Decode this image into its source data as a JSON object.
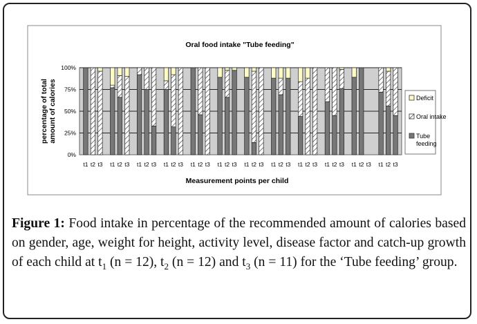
{
  "chart_data": {
    "type": "bar",
    "stacked": true,
    "title": "Oral food intake \"Tube feeding\"",
    "xlabel": "Measurement points per child",
    "ylabel_lines": [
      "percentage of total",
      "amount of calories"
    ],
    "yticks": [
      "0%",
      "25%",
      "50%",
      "75%",
      "100%"
    ],
    "ylim": [
      0,
      100
    ],
    "grid": true,
    "legend_position": "right",
    "colors": {
      "tube": "#777777",
      "oral": "#ffffff",
      "deficit": "#fdfbc8"
    },
    "series": [
      {
        "name": "Deficit",
        "key": "deficit"
      },
      {
        "name": "Oral intake",
        "key": "oral"
      },
      {
        "name": "Tube feeding",
        "key": "tube"
      }
    ],
    "children": [
      {
        "labels": [
          "t1",
          "t2",
          "t3"
        ],
        "bars": [
          {
            "tube": 100,
            "oral": 0,
            "deficit": 0
          },
          {
            "tube": 0,
            "oral": 100,
            "deficit": 0
          },
          {
            "tube": 0,
            "oral": 96,
            "deficit": 4
          }
        ]
      },
      {
        "labels": [
          "t1",
          "t2",
          "t3"
        ],
        "bars": [
          {
            "tube": 77,
            "oral": 3,
            "deficit": 20
          },
          {
            "tube": 66,
            "oral": 25,
            "deficit": 9
          },
          {
            "tube": 0,
            "oral": 90,
            "deficit": 10
          }
        ]
      },
      {
        "labels": [
          "t1",
          "t2",
          "t3"
        ],
        "bars": [
          {
            "tube": 92,
            "oral": 8,
            "deficit": 0
          },
          {
            "tube": 75,
            "oral": 25,
            "deficit": 0
          },
          {
            "tube": 33,
            "oral": 67,
            "deficit": 0
          }
        ]
      },
      {
        "labels": [
          "t1",
          "t2",
          "t3"
        ],
        "bars": [
          {
            "tube": 75,
            "oral": 10,
            "deficit": 15
          },
          {
            "tube": 32,
            "oral": 60,
            "deficit": 8
          },
          {
            "tube": 0,
            "oral": 100,
            "deficit": 0
          }
        ]
      },
      {
        "labels": [
          "t1",
          "t2",
          "t3"
        ],
        "bars": [
          {
            "tube": 100,
            "oral": 0,
            "deficit": 0
          },
          {
            "tube": 46,
            "oral": 54,
            "deficit": 0
          },
          {
            "tube": 0,
            "oral": 100,
            "deficit": 0
          }
        ]
      },
      {
        "labels": [
          "t1",
          "t2",
          "t3"
        ],
        "bars": [
          {
            "tube": 89,
            "oral": 0,
            "deficit": 11
          },
          {
            "tube": 66,
            "oral": 31,
            "deficit": 3
          },
          {
            "tube": 97,
            "oral": 0,
            "deficit": 3
          }
        ]
      },
      {
        "labels": [
          "t1",
          "t2",
          "t3"
        ],
        "bars": [
          {
            "tube": 89,
            "oral": 0,
            "deficit": 11
          },
          {
            "tube": 14,
            "oral": 82,
            "deficit": 4
          },
          {
            "tube": 0,
            "oral": 100,
            "deficit": 0
          }
        ]
      },
      {
        "labels": [
          "t1",
          "t2",
          "t3"
        ],
        "bars": [
          {
            "tube": 88,
            "oral": 0,
            "deficit": 12
          },
          {
            "tube": 69,
            "oral": 19,
            "deficit": 12
          },
          {
            "tube": 88,
            "oral": 0,
            "deficit": 12
          }
        ]
      },
      {
        "labels": [
          "t1",
          "t2",
          "t3"
        ],
        "bars": [
          {
            "tube": 44,
            "oral": 40,
            "deficit": 16
          },
          {
            "tube": 0,
            "oral": 88,
            "deficit": 12
          },
          {
            "tube": 0,
            "oral": 100,
            "deficit": 0
          }
        ]
      },
      {
        "labels": [
          "t1",
          "t2",
          "t3"
        ],
        "bars": [
          {
            "tube": 61,
            "oral": 39,
            "deficit": 0
          },
          {
            "tube": 45,
            "oral": 55,
            "deficit": 0
          },
          {
            "tube": 76,
            "oral": 22,
            "deficit": 2
          }
        ]
      },
      {
        "labels": [
          "t1",
          "t2",
          "t3"
        ],
        "bars": [
          {
            "tube": 89,
            "oral": 0,
            "deficit": 11
          },
          {
            "tube": 100,
            "oral": 0,
            "deficit": 0
          },
          null
        ]
      },
      {
        "labels": [
          "t1",
          "t2",
          "t3"
        ],
        "bars": [
          {
            "tube": 72,
            "oral": 28,
            "deficit": 0
          },
          {
            "tube": 56,
            "oral": 40,
            "deficit": 4
          },
          {
            "tube": 45,
            "oral": 55,
            "deficit": 0
          }
        ]
      }
    ]
  },
  "caption": {
    "label": "Figure 1:",
    "part1": " Food intake in percentage of the recommended amount of calories based on gender, age, weight for height, activity level, disease factor and catch-up growth of each child at t",
    "sub1": "1",
    "part2": " (n = 12), t",
    "sub2": "2",
    "part3": " (n = 12) and t",
    "sub3": "3",
    "part4": " (n = 11) for the ‘Tube feeding’ group."
  }
}
